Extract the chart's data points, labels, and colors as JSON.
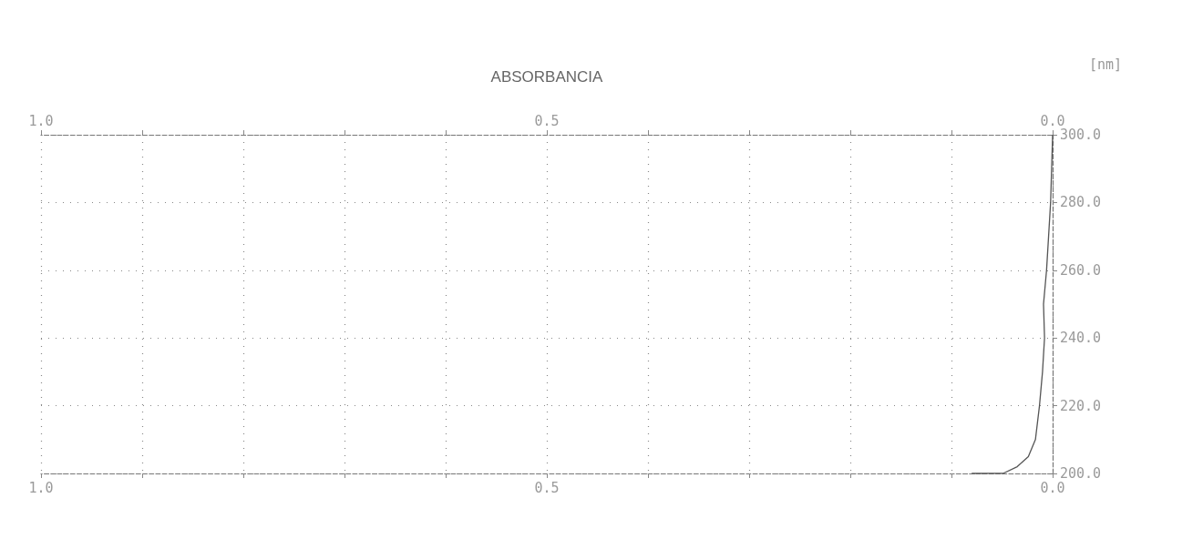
{
  "chart_data": {
    "type": "line",
    "xlabel": "ABSORBANCIA",
    "ylabel": "[nm]",
    "series": [
      {
        "color": "#555555",
        "x": [
          0.0,
          0.002,
          0.004,
          0.006,
          0.009,
          0.008,
          0.01,
          0.013,
          0.017,
          0.024,
          0.035,
          0.049,
          0.08
        ],
        "values": [
          300,
          280,
          270,
          260,
          250,
          240,
          230,
          220,
          210,
          205,
          202,
          200,
          200
        ]
      }
    ],
    "xlim": [
      1.0,
      0.0
    ],
    "xticks": [
      {
        "value": 1.0,
        "label": "1.0"
      },
      {
        "value": 0.9,
        "label": null
      },
      {
        "value": 0.8,
        "label": null
      },
      {
        "value": 0.7,
        "label": null
      },
      {
        "value": 0.6,
        "label": null
      },
      {
        "value": 0.5,
        "label": "0.5"
      },
      {
        "value": 0.4,
        "label": null
      },
      {
        "value": 0.3,
        "label": null
      },
      {
        "value": 0.2,
        "label": null
      },
      {
        "value": 0.1,
        "label": null
      },
      {
        "value": 0.0,
        "label": "0.0"
      }
    ],
    "x2lim": [
      1.0,
      0.0
    ],
    "x2ticks": [
      {
        "value": 1.0,
        "label": "1.0"
      },
      {
        "value": 0.9,
        "label": null
      },
      {
        "value": 0.8,
        "label": null
      },
      {
        "value": 0.7,
        "label": null
      },
      {
        "value": 0.6,
        "label": null
      },
      {
        "value": 0.5,
        "label": "0.5"
      },
      {
        "value": 0.4,
        "label": null
      },
      {
        "value": 0.3,
        "label": null
      },
      {
        "value": 0.2,
        "label": null
      },
      {
        "value": 0.1,
        "label": null
      },
      {
        "value": 0.0,
        "label": "0.0"
      }
    ],
    "ylim": [
      200,
      300
    ],
    "yticks": [
      {
        "value": 200,
        "label": "200.0"
      },
      {
        "value": 220,
        "label": "220.0"
      },
      {
        "value": 240,
        "label": "240.0"
      },
      {
        "value": 260,
        "label": "260.0"
      },
      {
        "value": 280,
        "label": "280.0"
      },
      {
        "value": 300,
        "label": "300.0"
      }
    ],
    "grid": true,
    "marker": "none",
    "line_style": "solid"
  }
}
